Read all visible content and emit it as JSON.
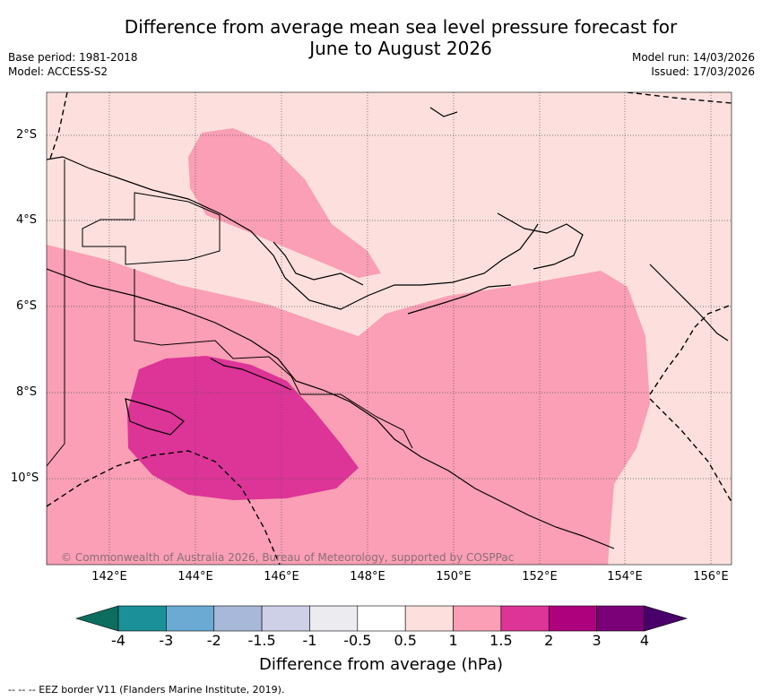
{
  "title_line1": "Difference from average mean sea level pressure forecast for",
  "title_line2": "June to August 2026",
  "meta_left": {
    "base_period": "Base period: 1981-2018",
    "model": "Model: ACCESS-S2"
  },
  "meta_right": {
    "model_run": "Model run: 14/03/2026",
    "issued": "Issued: 17/03/2026"
  },
  "axes": {
    "lat_labels": [
      "2°S",
      "4°S",
      "6°S",
      "8°S",
      "10°S"
    ],
    "lon_labels": [
      "142°E",
      "144°E",
      "146°E",
      "148°E",
      "150°E",
      "152°E",
      "154°E",
      "156°E"
    ]
  },
  "copyright": "© Commonwealth of Australia 2026, Bureau of Meteorology, supported by COSPPac",
  "colorbar": {
    "label": "Difference from average (hPa)",
    "tick_labels": [
      "-4",
      "-3",
      "-2",
      "-1.5",
      "-1",
      "-0.5",
      "0.5",
      "1",
      "1.5",
      "2",
      "3",
      "4"
    ],
    "colors": [
      "#1b9099",
      "#6aaad3",
      "#a7b8d8",
      "#cdd0e6",
      "#ecebf0",
      "#ffffff",
      "#fde0dd",
      "#fa9fb5",
      "#dd3497",
      "#ae017e",
      "#7a0177"
    ],
    "extend_low_color": "#0d6d5f",
    "extend_high_color": "#49006a"
  },
  "legend_footnote": "--  --  -- EEZ border V11 (Flanders Marine Institute, 2019).",
  "map_colors": {
    "background_fill": "#fde0dd",
    "band_1_to_1_5": "#fa9fb5",
    "band_1_5_to_2": "#dd3497",
    "grid": "#555555"
  }
}
